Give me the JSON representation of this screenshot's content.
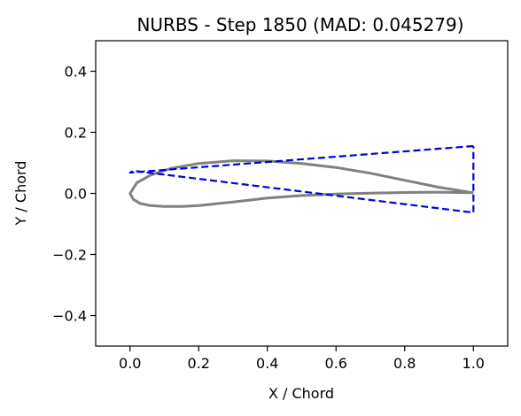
{
  "chart_data": {
    "type": "line",
    "title": "NURBS - Step 1850 (MAD: 0.045279)",
    "xlabel": "X / Chord",
    "ylabel": "Y / Chord",
    "xlim": [
      -0.1,
      1.1
    ],
    "ylim": [
      -0.5,
      0.5
    ],
    "xticks": [
      0.0,
      0.2,
      0.4,
      0.6,
      0.8,
      1.0
    ],
    "xtick_labels": [
      "0.0",
      "0.2",
      "0.4",
      "0.6",
      "0.8",
      "1.0"
    ],
    "yticks": [
      0.4,
      0.2,
      0.0,
      -0.2,
      -0.4
    ],
    "ytick_labels": [
      "0.4",
      "0.2",
      "0.0",
      "−0.2",
      "−0.4"
    ],
    "grid": false,
    "series": [
      {
        "style": "solid",
        "color": "#808080",
        "x": [
          1.0,
          0.9,
          0.8,
          0.7,
          0.6,
          0.5,
          0.4,
          0.3,
          0.2,
          0.12,
          0.06,
          0.02,
          0.0,
          0.01,
          0.03,
          0.06,
          0.1,
          0.15,
          0.2,
          0.3,
          0.4,
          0.5,
          0.6,
          0.7,
          0.8,
          0.9,
          1.0
        ],
        "y": [
          0.002,
          0.02,
          0.043,
          0.066,
          0.085,
          0.098,
          0.106,
          0.107,
          0.098,
          0.082,
          0.06,
          0.035,
          0.0,
          -0.02,
          -0.033,
          -0.04,
          -0.043,
          -0.043,
          -0.04,
          -0.028,
          -0.015,
          -0.007,
          -0.002,
          0.001,
          0.003,
          0.004,
          0.002
        ]
      },
      {
        "style": "dashed",
        "color": "#0000dd",
        "x": [
          1.0,
          0.0,
          0.01,
          1.0,
          1.0
        ],
        "y": [
          0.155,
          0.068,
          0.074,
          -0.063,
          0.155
        ]
      }
    ]
  }
}
